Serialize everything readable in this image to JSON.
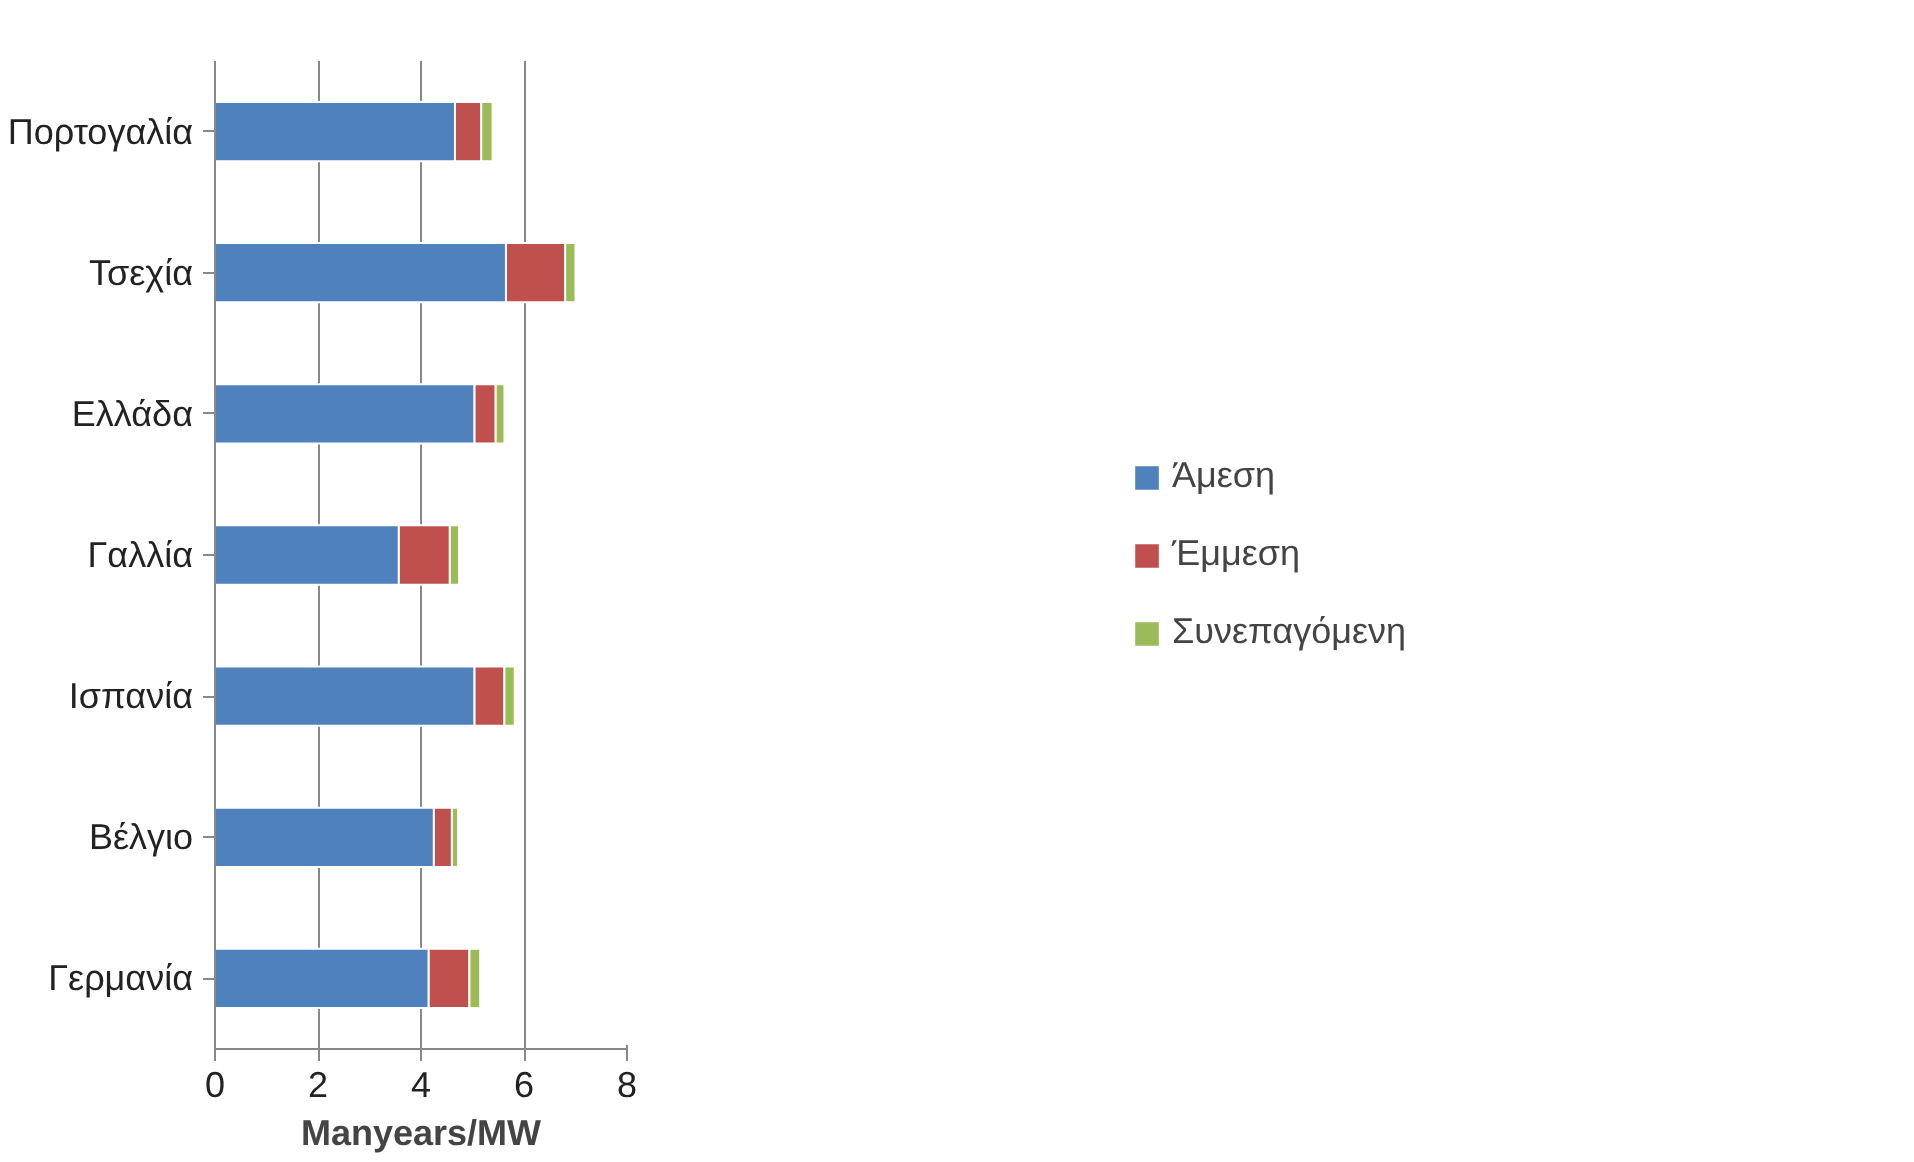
{
  "chart_data": {
    "type": "bar",
    "orientation": "horizontal",
    "stacked": true,
    "xlabel": "Manyears/MW",
    "categories": [
      "Πορτογαλία",
      "Τσεχία",
      "Ελλάδα",
      "Γαλλία",
      "Ισπανία",
      "Βέλγιο",
      "Γερμανία"
    ],
    "series": [
      {
        "name": "Άμεση",
        "color": "#4f81bd",
        "values": [
          4.66,
          5.65,
          5.04,
          3.57,
          5.04,
          4.25,
          4.15
        ]
      },
      {
        "name": "Έμμεση",
        "color": "#c0504d",
        "values": [
          0.51,
          1.15,
          0.41,
          0.99,
          0.58,
          0.35,
          0.79
        ]
      },
      {
        "name": "Συνεπαγόμενη",
        "color": "#9bbb59",
        "values": [
          0.22,
          0.2,
          0.17,
          0.18,
          0.2,
          0.12,
          0.21
        ]
      }
    ],
    "xlim": [
      0,
      8
    ],
    "xticks": [
      0,
      2,
      4,
      6,
      8
    ],
    "grid": "x",
    "legend": "right"
  }
}
